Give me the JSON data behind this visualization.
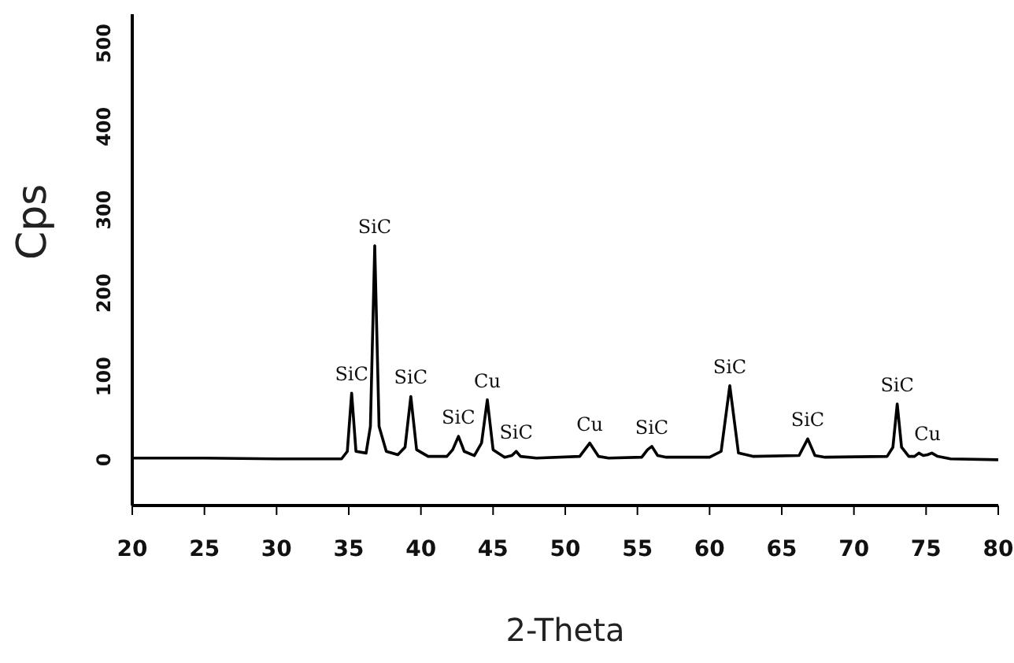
{
  "chart_data": {
    "type": "line",
    "xlabel": "2-Theta",
    "ylabel": "Cps",
    "x": [
      20,
      25,
      30,
      34.5,
      34.9,
      35.2,
      35.5,
      36.2,
      36.5,
      36.8,
      37.1,
      37.6,
      38.4,
      38.9,
      39.3,
      39.7,
      40.5,
      41.8,
      42.2,
      42.6,
      43.0,
      43.7,
      44.2,
      44.6,
      45.0,
      45.8,
      46.3,
      46.6,
      46.9,
      48,
      51.0,
      51.7,
      52.3,
      53,
      55.3,
      55.7,
      56.0,
      56.4,
      57,
      60,
      60.8,
      61.4,
      62.0,
      63,
      66.2,
      66.8,
      67.3,
      68,
      72.3,
      72.7,
      73.0,
      73.3,
      73.8,
      74.2,
      74.5,
      74.8,
      75.1,
      75.4,
      75.8,
      76.7,
      80
    ],
    "series": [
      {
        "color": "#000000",
        "values": [
          2,
          2,
          1,
          1,
          10,
          80,
          10,
          8,
          40,
          257,
          40,
          10,
          6,
          15,
          76,
          12,
          4,
          4,
          12,
          28,
          10,
          5,
          20,
          72,
          12,
          3,
          5,
          10,
          4,
          2,
          4,
          20,
          4,
          2,
          3,
          12,
          16,
          5,
          3,
          3,
          10,
          89,
          8,
          4,
          5,
          25,
          5,
          3,
          4,
          15,
          67,
          15,
          4,
          4,
          8,
          5,
          6,
          8,
          4,
          1,
          0
        ]
      }
    ],
    "xlim": [
      20,
      80
    ],
    "xticks": [
      20,
      25,
      30,
      35,
      40,
      45,
      50,
      55,
      60,
      65,
      70,
      75,
      80
    ],
    "ylim": [
      -55,
      535
    ],
    "yticks": [
      0,
      100,
      200,
      300,
      400,
      500
    ],
    "marker": "none",
    "line_style": "solid",
    "annotations": [
      {
        "text": "SiC",
        "x": 35.2,
        "y": 80
      },
      {
        "text": "SiC",
        "x": 36.8,
        "y": 257
      },
      {
        "text": "SiC",
        "x": 39.3,
        "y": 76
      },
      {
        "text": "SiC",
        "x": 42.6,
        "y": 28
      },
      {
        "text": "Cu",
        "x": 44.6,
        "y": 72
      },
      {
        "text": "SiC",
        "x": 46.6,
        "y": 10
      },
      {
        "text": "Cu",
        "x": 51.7,
        "y": 20
      },
      {
        "text": "SiC",
        "x": 56.0,
        "y": 16
      },
      {
        "text": "SiC",
        "x": 61.4,
        "y": 89
      },
      {
        "text": "SiC",
        "x": 66.8,
        "y": 25
      },
      {
        "text": "SiC",
        "x": 73.0,
        "y": 67
      },
      {
        "text": "Cu",
        "x": 75.1,
        "y": 8
      }
    ]
  }
}
